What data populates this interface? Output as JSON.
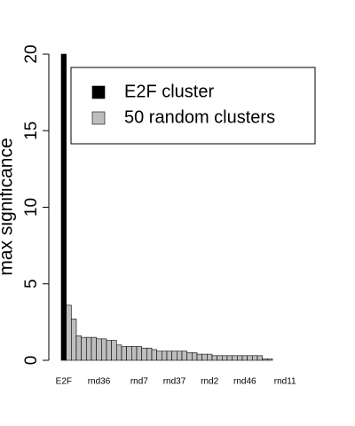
{
  "chart_data": {
    "type": "bar",
    "y_label": "max significance",
    "categories": [
      "E2F",
      null,
      null,
      null,
      null,
      null,
      null,
      "rnd36",
      null,
      null,
      null,
      null,
      null,
      null,
      null,
      "rnd7",
      null,
      null,
      null,
      null,
      null,
      null,
      "rnd37",
      null,
      null,
      null,
      null,
      null,
      null,
      "rnd2",
      null,
      null,
      null,
      null,
      null,
      null,
      "rnd46",
      null,
      null,
      null,
      null,
      null,
      null,
      null,
      "rnd11",
      null,
      null,
      null,
      null,
      null,
      null
    ],
    "series": [
      {
        "name": "E2F cluster",
        "color": "#000000",
        "values": [
          20,
          null,
          null,
          null,
          null,
          null,
          null,
          null,
          null,
          null,
          null,
          null,
          null,
          null,
          null,
          null,
          null,
          null,
          null,
          null,
          null,
          null,
          null,
          null,
          null,
          null,
          null,
          null,
          null,
          null,
          null,
          null,
          null,
          null,
          null,
          null,
          null,
          null,
          null,
          null,
          null,
          null,
          null,
          null,
          null,
          null,
          null,
          null,
          null,
          null,
          null
        ]
      },
      {
        "name": "50 random clusters",
        "color": "#bebebe",
        "values": [
          null,
          3.6,
          2.7,
          1.6,
          1.5,
          1.5,
          1.5,
          1.4,
          1.4,
          1.3,
          1.3,
          1.0,
          0.9,
          0.9,
          0.9,
          0.9,
          0.8,
          0.8,
          0.7,
          0.6,
          0.6,
          0.6,
          0.6,
          0.6,
          0.6,
          0.5,
          0.5,
          0.4,
          0.4,
          0.4,
          0.3,
          0.3,
          0.3,
          0.3,
          0.3,
          0.3,
          0.3,
          0.3,
          0.3,
          0.3,
          0.1,
          0.1,
          0,
          0,
          0,
          0,
          0,
          0,
          0,
          0,
          0
        ]
      }
    ],
    "ylim": [
      0,
      20
    ],
    "yticks": [
      0,
      5,
      10,
      15,
      20
    ]
  }
}
